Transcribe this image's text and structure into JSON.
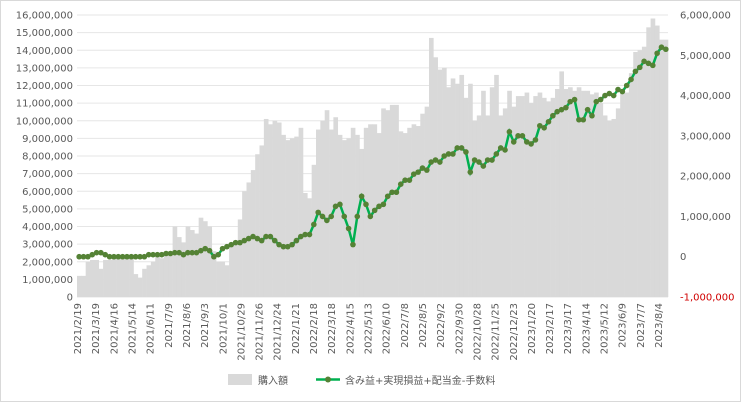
{
  "chart_data": {
    "type": "bar+line",
    "x_tick_labels": [
      "2021/2/19",
      "2021/3/19",
      "2021/4/16",
      "2021/5/14",
      "2021/6/11",
      "2021/7/9",
      "2021/8/6",
      "2021/9/3",
      "2021/10/1",
      "2021/10/29",
      "2021/11/26",
      "2021/12/24",
      "2022/1/21",
      "2022/2/18",
      "2022/3/18",
      "2022/4/15",
      "2022/5/13",
      "2022/6/10",
      "2022/7/8",
      "2022/8/5",
      "2022/9/2",
      "2022/9/30",
      "2022/10/28",
      "2022/11/25",
      "2022/12/23",
      "2023/1/20",
      "2023/2/17",
      "2023/3/17",
      "2023/4/14",
      "2023/5/12",
      "2023/6/9",
      "2023/7/7",
      "2023/8/4"
    ],
    "y_left": {
      "ylim": [
        0,
        16000000
      ],
      "ticks": [
        "0",
        "1,000,000",
        "2,000,000",
        "3,000,000",
        "4,000,000",
        "5,000,000",
        "6,000,000",
        "7,000,000",
        "8,000,000",
        "9,000,000",
        "10,000,000",
        "11,000,000",
        "12,000,000",
        "13,000,000",
        "14,000,000",
        "15,000,000",
        "16,000,000"
      ]
    },
    "y_right": {
      "ylim": [
        -1000000,
        6000000
      ],
      "ticks": [
        "-1,000,000",
        "0",
        "1,000,000",
        "2,000,000",
        "3,000,000",
        "4,000,000",
        "5,000,000",
        "6,000,000"
      ]
    },
    "grid": true,
    "legend_position": "bottom",
    "series": [
      {
        "name": "購入額",
        "type": "bar",
        "axis": "left",
        "color": "#d9d9d9",
        "values": [
          1200000,
          1200000,
          2000000,
          2100000,
          2100000,
          1600000,
          2100000,
          2100000,
          2300000,
          2300000,
          2200000,
          2300000,
          2200000,
          1300000,
          1100000,
          1600000,
          1800000,
          2000000,
          2300000,
          2200000,
          2500000,
          2500000,
          4000000,
          3400000,
          3100000,
          4000000,
          3800000,
          3600000,
          4500000,
          4300000,
          4000000,
          2600000,
          2000000,
          2000000,
          1800000,
          3000000,
          3200000,
          4400000,
          6000000,
          6500000,
          7200000,
          8100000,
          8600000,
          10100000,
          9800000,
          10000000,
          9900000,
          9200000,
          8900000,
          9000000,
          9100000,
          9600000,
          5900000,
          5600000,
          7500000,
          9500000,
          10000000,
          10600000,
          9500000,
          10200000,
          9200000,
          8900000,
          9000000,
          9600000,
          9200000,
          8400000,
          9600000,
          9800000,
          9800000,
          9300000,
          10700000,
          10600000,
          10900000,
          10900000,
          9400000,
          9300000,
          9600000,
          9800000,
          9700000,
          10400000,
          10800000,
          14700000,
          13600000,
          12900000,
          13000000,
          11900000,
          12400000,
          12100000,
          12600000,
          11300000,
          12100000,
          10000000,
          10300000,
          11700000,
          10300000,
          11900000,
          12600000,
          10300000,
          10700000,
          11700000,
          10800000,
          11400000,
          11400000,
          11600000,
          11000000,
          11400000,
          11600000,
          11300000,
          11100000,
          11300000,
          11800000,
          12800000,
          11800000,
          11900000,
          11700000,
          11900000,
          11700000,
          11700000,
          11500000,
          11600000,
          11000000,
          10300000,
          10000000,
          10100000,
          10700000,
          11700000,
          11600000,
          12700000,
          13900000,
          14000000,
          14200000,
          15300000,
          15800000,
          15400000,
          14600000,
          14600000
        ]
      },
      {
        "name": "含み益+実現損益+配当金-手数料",
        "type": "line",
        "axis": "right",
        "color": "#00b050",
        "marker_color": "#548235",
        "values": [
          0,
          0,
          0,
          50000,
          100000,
          100000,
          50000,
          0,
          0,
          0,
          0,
          0,
          0,
          0,
          0,
          0,
          50000,
          50000,
          50000,
          50000,
          80000,
          80000,
          100000,
          100000,
          50000,
          100000,
          100000,
          100000,
          150000,
          200000,
          150000,
          0,
          50000,
          200000,
          250000,
          300000,
          350000,
          350000,
          400000,
          450000,
          500000,
          450000,
          400000,
          500000,
          500000,
          400000,
          300000,
          250000,
          250000,
          300000,
          400000,
          500000,
          550000,
          550000,
          800000,
          1100000,
          1000000,
          900000,
          1000000,
          1250000,
          1300000,
          1000000,
          700000,
          300000,
          1000000,
          1500000,
          1300000,
          1000000,
          1150000,
          1250000,
          1300000,
          1500000,
          1600000,
          1600000,
          1800000,
          1900000,
          1900000,
          2050000,
          2100000,
          2200000,
          2150000,
          2350000,
          2400000,
          2350000,
          2500000,
          2550000,
          2550000,
          2700000,
          2700000,
          2600000,
          2100000,
          2400000,
          2350000,
          2250000,
          2400000,
          2400000,
          2550000,
          2700000,
          2650000,
          3100000,
          2850000,
          3000000,
          3000000,
          2850000,
          2800000,
          2900000,
          3250000,
          3200000,
          3350000,
          3500000,
          3600000,
          3650000,
          3700000,
          3850000,
          3900000,
          3400000,
          3400000,
          3650000,
          3500000,
          3850000,
          3900000,
          4000000,
          4050000,
          4000000,
          4150000,
          4100000,
          4250000,
          4400000,
          4600000,
          4700000,
          4850000,
          4800000,
          4750000,
          5050000,
          5200000,
          5150000
        ]
      }
    ]
  }
}
